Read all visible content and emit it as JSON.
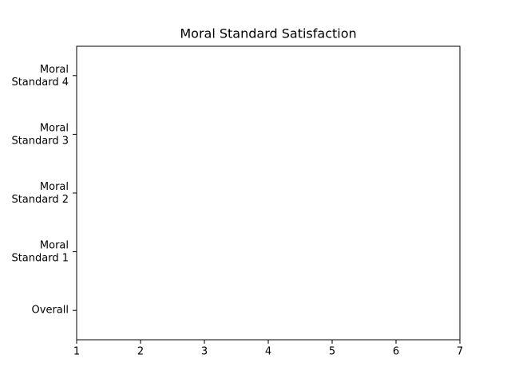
{
  "chart_data": {
    "type": "barh",
    "title": "Moral Standard Satisfaction",
    "categories": [
      "Overall",
      "Moral\nStandard 1",
      "Moral\nStandard 2",
      "Moral\nStandard 3",
      "Moral\nStandard 4"
    ],
    "xlim": [
      1,
      7
    ],
    "xticks": [
      1,
      2,
      3,
      4,
      5,
      6,
      7
    ]
  }
}
